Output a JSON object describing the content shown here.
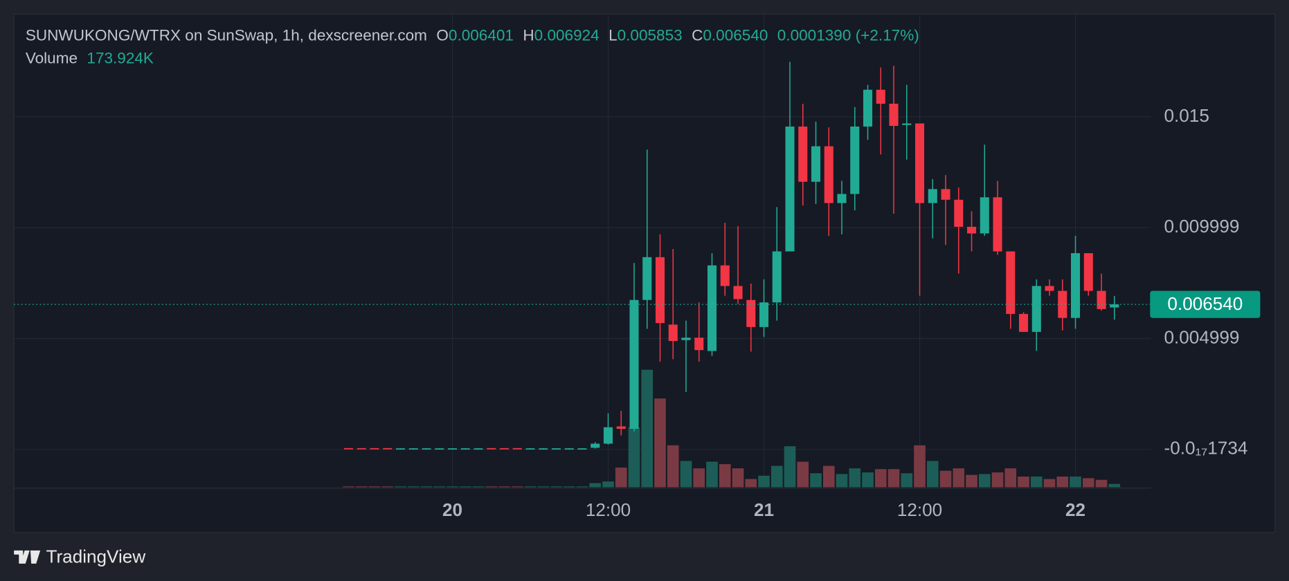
{
  "chart_data": {
    "type": "candlestick",
    "header": {
      "symbol": "SUNWUKONG/WTRX on SunSwap, 1h, dexscreener.com",
      "o_key": "O",
      "o": "0.006401",
      "h_key": "H",
      "h": "0.006924",
      "l_key": "L",
      "l": "0.005853",
      "c_key": "C",
      "c": "0.006540",
      "change": "0.0001390 (+2.17%)",
      "volume_key": "Volume",
      "volume": "173.924K"
    },
    "brand": "TradingView",
    "categories": [
      null,
      null,
      null,
      null,
      null,
      null,
      null,
      null,
      "20",
      null,
      null,
      null,
      null,
      null,
      null,
      null,
      null,
      null,
      null,
      null,
      "12:00",
      null,
      null,
      null,
      null,
      null,
      null,
      null,
      null,
      null,
      null,
      null,
      "21",
      null,
      null,
      null,
      null,
      null,
      null,
      null,
      null,
      null,
      null,
      null,
      "12:00",
      null,
      null,
      null,
      null,
      null,
      null,
      null,
      null,
      null,
      null,
      null,
      "22",
      null,
      null,
      null
    ],
    "open": [
      6e-05,
      6e-05,
      6e-05,
      6e-05,
      4e-05,
      4e-05,
      4e-05,
      4e-05,
      4e-05,
      4e-05,
      4e-05,
      6e-05,
      6e-05,
      6e-05,
      4e-05,
      4e-05,
      4e-05,
      4e-05,
      4e-05,
      7.4e-05,
      0.00026,
      0.00104,
      0.00093,
      0.00674,
      0.00867,
      0.00563,
      0.00493,
      0.00504,
      0.00444,
      0.0083,
      0.00737,
      0.00674,
      0.00552,
      0.00663,
      0.00893,
      0.01456,
      0.01207,
      0.01367,
      0.01111,
      0.01152,
      0.01456,
      0.01622,
      0.01559,
      0.01463,
      0.0147,
      0.01111,
      0.01174,
      0.01126,
      0.01004,
      0.00974,
      0.01137,
      0.00893,
      0.00611,
      0.0053,
      0.00737,
      0.00715,
      0.00593,
      0.00885,
      0.00715,
      0.006401
    ],
    "high": [
      6e-05,
      6e-05,
      6e-05,
      6e-05,
      6e-05,
      6e-05,
      6e-05,
      6e-05,
      6e-05,
      6e-05,
      6e-05,
      6e-05,
      6e-05,
      6e-05,
      6e-05,
      6e-05,
      6e-05,
      6e-05,
      6e-05,
      0.00033,
      0.00163,
      0.00174,
      0.00841,
      0.01352,
      0.0097,
      0.00904,
      0.00581,
      0.00663,
      0.00885,
      0.01022,
      0.01007,
      0.00748,
      0.00767,
      0.01093,
      0.01748,
      0.01559,
      0.01478,
      0.01452,
      0.01211,
      0.01544,
      0.01644,
      0.01722,
      0.0173,
      0.01644,
      0.0147,
      0.01219,
      0.01237,
      0.01181,
      0.01074,
      0.01374,
      0.01211,
      0.00893,
      0.00619,
      0.00767,
      0.00767,
      0.00767,
      0.00963,
      0.00885,
      0.00793,
      0.006924
    ],
    "low": [
      4e-05,
      4e-05,
      4e-05,
      4e-05,
      4e-05,
      4e-05,
      4e-05,
      4e-05,
      4e-05,
      4e-05,
      4e-05,
      4e-05,
      4e-05,
      4e-05,
      4e-05,
      4e-05,
      4e-05,
      4e-05,
      4e-05,
      4e-05,
      0.00022,
      0.00063,
      0.00081,
      0.00544,
      0.00396,
      0.00407,
      0.00259,
      0.00396,
      0.00422,
      0.00693,
      0.00656,
      0.00441,
      0.00507,
      0.00581,
      0.00893,
      0.011,
      0.01107,
      0.00963,
      0.0097,
      0.01078,
      0.01396,
      0.0133,
      0.01063,
      0.01307,
      0.00693,
      0.00952,
      0.00922,
      0.00793,
      0.00893,
      0.00963,
      0.00878,
      0.00544,
      0.0053,
      0.00444,
      0.00693,
      0.00537,
      0.00544,
      0.00693,
      0.00626,
      0.005853
    ],
    "close": [
      5e-05,
      5e-05,
      5e-05,
      5e-05,
      5e-05,
      5e-05,
      5e-05,
      5e-05,
      5e-05,
      5e-05,
      5e-05,
      5e-05,
      5e-05,
      5e-05,
      5e-05,
      5e-05,
      5e-05,
      5e-05,
      5e-05,
      0.00026,
      0.001,
      0.00093,
      0.00674,
      0.00867,
      0.0057,
      0.00489,
      0.00504,
      0.00448,
      0.0083,
      0.00737,
      0.00678,
      0.00552,
      0.00663,
      0.00893,
      0.01456,
      0.01207,
      0.01367,
      0.01111,
      0.01152,
      0.01456,
      0.01622,
      0.01559,
      0.01459,
      0.0147,
      0.01111,
      0.01174,
      0.01126,
      0.01004,
      0.00974,
      0.01137,
      0.00893,
      0.00611,
      0.0053,
      0.00737,
      0.00715,
      0.00593,
      0.00885,
      0.00715,
      0.00633,
      0.00654
    ],
    "volume": [
      43000,
      43000,
      43000,
      43000,
      43000,
      43000,
      43000,
      43000,
      43000,
      43000,
      43000,
      43000,
      43000,
      43000,
      43000,
      43000,
      43000,
      43000,
      43000,
      217000,
      304000,
      1040000,
      3170000,
      6220000,
      4700000,
      2220000,
      1390000,
      1000000,
      1350000,
      1220000,
      1000000,
      435000,
      609000,
      1130000,
      2170000,
      1350000,
      739000,
      1130000,
      696000,
      1000000,
      783000,
      957000,
      957000,
      739000,
      2220000,
      1390000,
      870000,
      1000000,
      652000,
      696000,
      783000,
      1000000,
      565000,
      565000,
      435000,
      565000,
      565000,
      478000,
      391000,
      173924
    ],
    "up_color": "#22ab94",
    "down_color": "#f23645",
    "volume_up_color": "#1c5e57",
    "volume_down_color": "#7a3a44",
    "ylim": [
      -0.00174,
      0.01963
    ],
    "yticks": [
      0.015,
      0.009999,
      0.004999,
      {
        "value": -1.734e-18,
        "label": "-0.0₁₇1734"
      }
    ],
    "last_price": {
      "value": 0.00654,
      "label": "0.006540"
    },
    "grid": true
  }
}
